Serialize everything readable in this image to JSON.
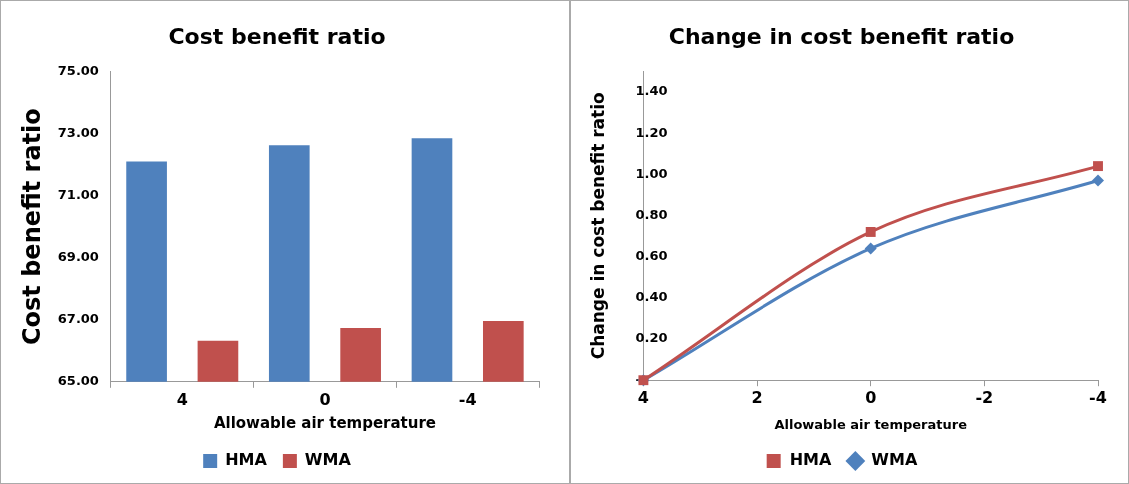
{
  "chart_data": [
    {
      "type": "bar",
      "title": "Cost benefit ratio",
      "xlabel": "Allowable air temperature",
      "ylabel": "Cost benefit ratio",
      "categories": [
        "4",
        "0",
        "-4"
      ],
      "series": [
        {
          "name": "HMA",
          "color": "#4f81bd",
          "values": [
            72.1,
            72.62,
            72.85
          ]
        },
        {
          "name": "WMA",
          "color": "#c0504d",
          "values": [
            66.32,
            66.73,
            66.96
          ]
        }
      ],
      "ylim": [
        65,
        75
      ],
      "yticks": [
        {
          "value": 65,
          "label": "65.00"
        },
        {
          "value": 67,
          "label": "67.00"
        },
        {
          "value": 69,
          "label": "69.00"
        },
        {
          "value": 71,
          "label": "71.00"
        },
        {
          "value": 73,
          "label": "73.00"
        },
        {
          "value": 75,
          "label": "75.00"
        }
      ],
      "grid": false,
      "legend": "bottom"
    },
    {
      "type": "line",
      "title": "Change in cost benefit ratio",
      "xlabel": "Allowable air temperature",
      "ylabel": "Change in cost benefit ratio",
      "x": [
        4,
        0,
        -4
      ],
      "series": [
        {
          "name": "HMA",
          "color": "#c0504d",
          "marker": "square",
          "values": [
            0,
            0.72,
            1.04
          ]
        },
        {
          "name": "WMA",
          "color": "#4f81bd",
          "marker": "diamond",
          "values": [
            0,
            0.64,
            0.97
          ]
        }
      ],
      "xlim": [
        4,
        -4
      ],
      "xticks": [
        4,
        2,
        0,
        -2,
        -4
      ],
      "ylim": [
        0,
        1.5
      ],
      "yticks": [
        {
          "value": 0,
          "label": "-"
        },
        {
          "value": 0.2,
          "label": "0.20"
        },
        {
          "value": 0.4,
          "label": "0.40"
        },
        {
          "value": 0.6,
          "label": "0.60"
        },
        {
          "value": 0.8,
          "label": "0.80"
        },
        {
          "value": 1.0,
          "label": "1.00"
        },
        {
          "value": 1.2,
          "label": "1.20"
        },
        {
          "value": 1.4,
          "label": "1.40"
        }
      ],
      "grid": false,
      "legend": "bottom"
    }
  ]
}
